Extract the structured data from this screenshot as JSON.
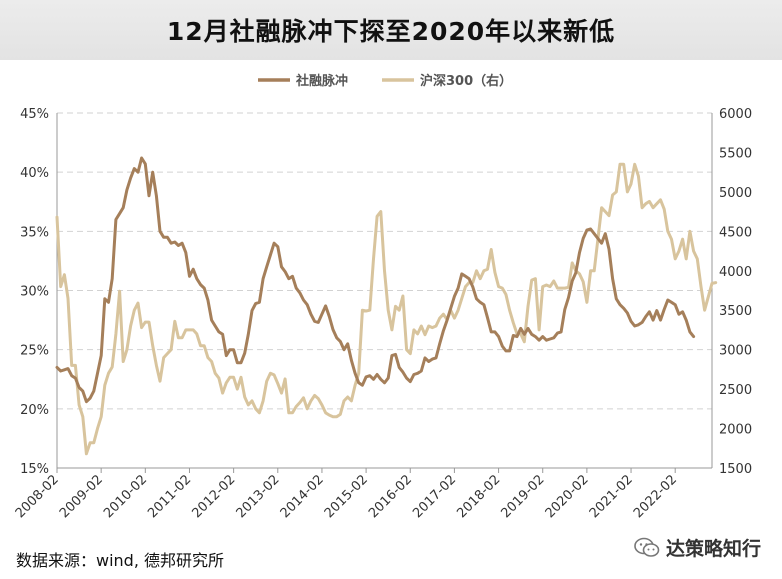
{
  "title": "12月社融脉冲下探至2020年以来新低",
  "source": "数据来源：wind, 德邦研究所",
  "watermark": "达策略知行",
  "colors": {
    "series1": "#a57f5a",
    "series2": "#d8c49d",
    "grid": "#d2d2d2",
    "axis": "#999999",
    "tick_text": "#333333"
  },
  "chart_data": {
    "type": "line",
    "title": "12月社融脉冲下探至2020年以来新低",
    "legend_position": "top-center",
    "x_ticks": [
      "2008-02",
      "2009-02",
      "2010-02",
      "2011-02",
      "2012-02",
      "2013-02",
      "2014-02",
      "2015-02",
      "2016-02",
      "2017-02",
      "2018-02",
      "2019-02",
      "2020-02",
      "2021-02",
      "2022-02"
    ],
    "x_range_months": [
      0,
      178
    ],
    "y_left": {
      "min": 15,
      "max": 45,
      "step": 5,
      "ticks": [
        "15%",
        "20%",
        "25%",
        "30%",
        "35%",
        "40%",
        "45%"
      ]
    },
    "y_right": {
      "min": 1500,
      "max": 6000,
      "step": 500,
      "ticks": [
        "1500",
        "2000",
        "2500",
        "3000",
        "3500",
        "4000",
        "4500",
        "5000",
        "5500",
        "6000"
      ]
    },
    "series": [
      {
        "name": "社融脉冲",
        "axis": "left",
        "values": [
          23.5,
          23.2,
          23.3,
          23.4,
          22.8,
          22.6,
          21.8,
          21.5,
          20.6,
          20.9,
          21.5,
          23,
          24.5,
          29.3,
          29,
          31,
          36,
          36.5,
          37,
          38.5,
          39.5,
          40.3,
          40,
          41.2,
          40.7,
          38,
          40,
          38,
          35,
          34.5,
          34.5,
          34,
          34.1,
          33.8,
          34,
          33.2,
          31.2,
          31.8,
          31,
          30.5,
          30.2,
          29.2,
          27.5,
          27,
          26.5,
          26.3,
          24.5,
          25,
          25,
          23.9,
          23.9,
          24.7,
          26.3,
          28.3,
          28.9,
          29,
          31,
          32,
          33,
          34,
          33.7,
          32,
          31.6,
          31,
          31.2,
          30.2,
          29.8,
          29.2,
          28.8,
          28,
          27.4,
          27.3,
          28,
          28.7,
          27.8,
          26.7,
          26,
          25.7,
          25,
          25.5,
          24.1,
          23,
          22.2,
          22,
          22.7,
          22.8,
          22.5,
          22.9,
          22.5,
          22.2,
          22.6,
          24.5,
          24.6,
          23.5,
          23.1,
          22.6,
          22.3,
          22.9,
          23,
          23.2,
          24.3,
          24,
          24.2,
          24.3,
          25.5,
          26.6,
          27.5,
          28.5,
          29.5,
          30.2,
          31.4,
          31.2,
          31,
          30.3,
          29.3,
          29,
          28.8,
          27.7,
          26.5,
          26.5,
          26.1,
          25.3,
          24.9,
          24.9,
          26.2,
          26.1,
          26.8,
          26.3,
          26.8,
          26.3,
          26.1,
          25.8,
          26.1,
          25.8,
          25.9,
          26,
          26.4,
          26.5,
          28.4,
          29.4,
          30.8,
          31.5,
          33.2,
          34.4,
          35.1,
          35.2,
          34.8,
          34.4,
          34,
          34.8,
          33.5,
          31,
          29.3,
          28.8,
          28.5,
          28.1,
          27.4,
          27,
          27.1,
          27.3,
          27.8,
          28.2,
          27.5,
          28.3,
          27.5,
          28.4,
          29.2,
          29,
          28.8,
          28,
          28.2,
          27.5,
          26.5,
          26.1
        ],
        "color": "#a57f5a"
      },
      {
        "name": "沪深300（右）",
        "axis": "right",
        "values": [
          4680,
          3800,
          3950,
          3650,
          2800,
          2800,
          2300,
          2150,
          1680,
          1820,
          1820,
          2000,
          2150,
          2550,
          2700,
          2780,
          3200,
          3740,
          2850,
          3000,
          3300,
          3500,
          3590,
          3280,
          3350,
          3350,
          3050,
          2800,
          2600,
          2900,
          2950,
          3000,
          3360,
          3150,
          3150,
          3250,
          3250,
          3250,
          3200,
          3050,
          3050,
          2900,
          2850,
          2700,
          2640,
          2450,
          2580,
          2650,
          2650,
          2500,
          2650,
          2400,
          2300,
          2350,
          2250,
          2200,
          2350,
          2600,
          2700,
          2680,
          2570,
          2450,
          2630,
          2200,
          2200,
          2280,
          2330,
          2390,
          2250,
          2350,
          2420,
          2380,
          2300,
          2200,
          2170,
          2150,
          2150,
          2180,
          2350,
          2400,
          2350,
          2550,
          2700,
          3500,
          3490,
          3500,
          4150,
          4690,
          4750,
          4000,
          3500,
          3250,
          3550,
          3500,
          3680,
          3000,
          2950,
          3250,
          3200,
          3300,
          3190,
          3300,
          3280,
          3300,
          3400,
          3450,
          3380,
          3500,
          3400,
          3500,
          3650,
          3800,
          3850,
          3850,
          4000,
          3900,
          4000,
          4020,
          4270,
          3980,
          3800,
          3780,
          3700,
          3500,
          3340,
          3200,
          3200,
          3100,
          3550,
          3880,
          3900,
          3250,
          3800,
          3820,
          3800,
          3870,
          3780,
          3780,
          3780,
          3790,
          4100,
          4000,
          3960,
          3860,
          3600,
          4000,
          4000,
          4400,
          4800,
          4750,
          4700,
          4960,
          5000,
          5350,
          5350,
          5000,
          5100,
          5350,
          5200,
          4800,
          4850,
          4880,
          4800,
          4850,
          4900,
          4780,
          4500,
          4400,
          4150,
          4250,
          4400,
          4150,
          4500,
          4250,
          4150,
          3800,
          3500,
          3670,
          3840,
          3850
        ],
        "color": "#d8c49d"
      }
    ]
  }
}
